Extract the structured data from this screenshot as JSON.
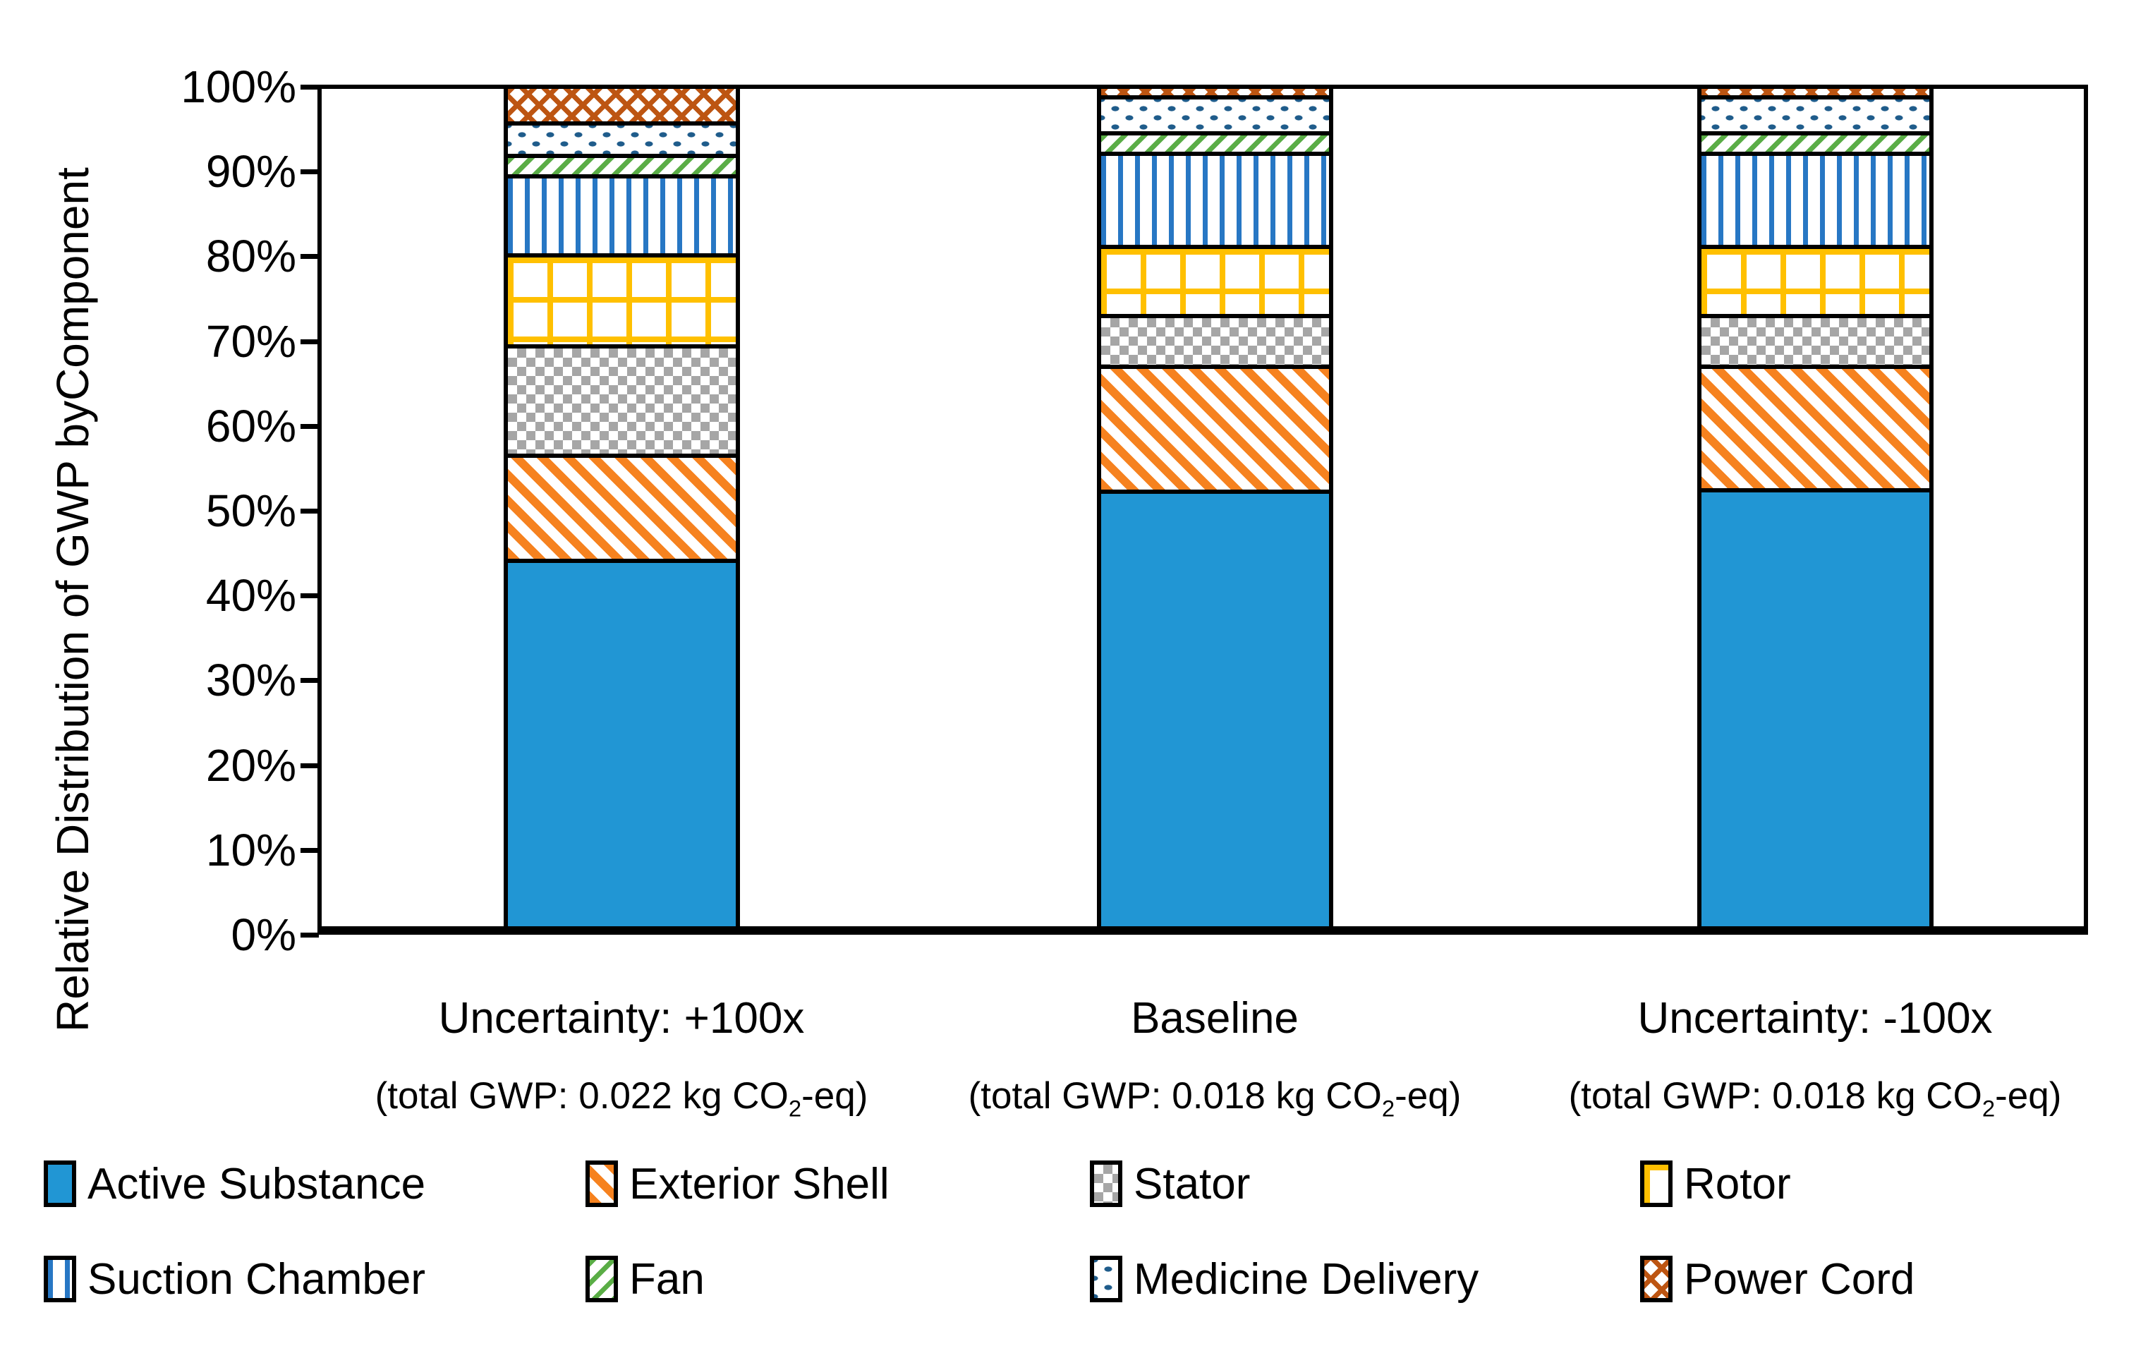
{
  "chart_data": {
    "type": "bar",
    "stacked": true,
    "unit": "%",
    "ylabel_line1": "Relative Distribution of GWP by",
    "ylabel_line2": "Component",
    "ylim": [
      0,
      100
    ],
    "ytick_step": 10,
    "yticks": [
      "0%",
      "10%",
      "20%",
      "30%",
      "40%",
      "50%",
      "60%",
      "70%",
      "80%",
      "90%",
      "100%"
    ],
    "grid": "off",
    "legend_position": "bottom",
    "categories": [
      {
        "label": "Uncertainty: +100x",
        "total_pre": "(total GWP: 0.022 kg CO",
        "total_sub": "2",
        "total_post": "-eq)"
      },
      {
        "label": "Baseline",
        "total_pre": "(total GWP: 0.018 kg CO",
        "total_sub": "2",
        "total_post": "-eq)"
      },
      {
        "label": "Uncertainty: -100x",
        "total_pre": "(total GWP: 0.018 kg CO",
        "total_sub": "2",
        "total_post": "-eq)"
      }
    ],
    "series": [
      {
        "name": "Active Substance",
        "key": "active-substance",
        "color": "#2196d4",
        "pattern": "solid",
        "values": [
          45.0,
          53.5,
          53.75
        ]
      },
      {
        "name": "Exterior Shell",
        "key": "exterior-shell",
        "color": "#f6821f",
        "pattern": "diagonal-stripes",
        "values": [
          12.5,
          15.0,
          14.75
        ]
      },
      {
        "name": "Stator",
        "key": "stator",
        "color": "#a6a6a6",
        "pattern": "checker",
        "values": [
          13.0,
          5.75,
          5.75
        ]
      },
      {
        "name": "Rotor",
        "key": "rotor",
        "color": "#ffc000",
        "pattern": "grid",
        "values": [
          10.75,
          8.0,
          8.0
        ]
      },
      {
        "name": "Suction Chamber",
        "key": "suction-chamber",
        "color": "#2777c4",
        "pattern": "vertical-lines",
        "values": [
          9.25,
          11.0,
          11.0
        ]
      },
      {
        "name": "Fan",
        "key": "fan",
        "color": "#5aad46",
        "pattern": "diagonal-dashes",
        "values": [
          2.0,
          2.0,
          2.0
        ]
      },
      {
        "name": "Medicine Delivery",
        "key": "medicine-delivery",
        "color": "#1f5c8b",
        "pattern": "dots",
        "values": [
          3.5,
          4.0,
          4.0
        ]
      },
      {
        "name": "Power Cord",
        "key": "power-cord",
        "color": "#bd5512",
        "pattern": "zigzag",
        "values": [
          4.0,
          0.75,
          0.75
        ]
      }
    ]
  },
  "layout_labels": {
    "note": "all visible text is in chart_data"
  }
}
